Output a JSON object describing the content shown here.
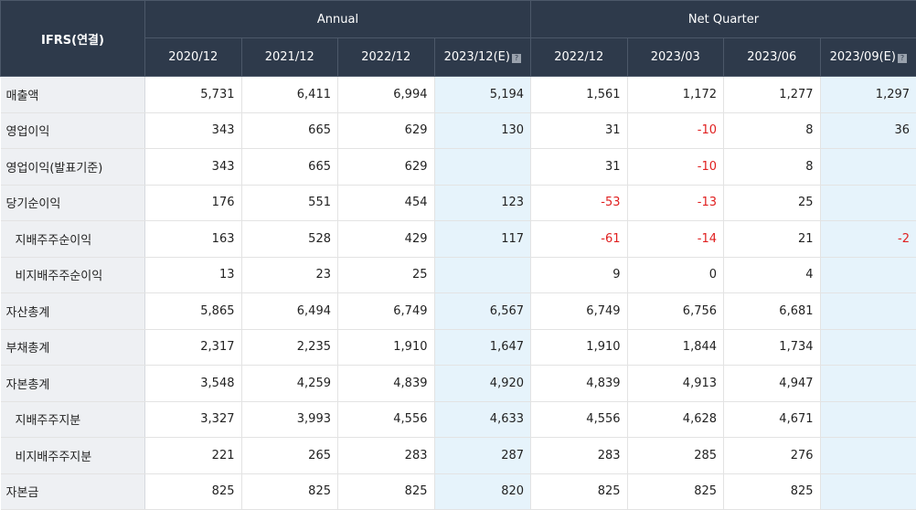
{
  "header": {
    "corner": "IFRS(연결)",
    "group_annual": "Annual",
    "group_quarter": "Net Quarter",
    "estimate_icon": "question-box-icon",
    "columns": [
      "2020/12",
      "2021/12",
      "2022/12",
      "2023/12(E)",
      "2022/12",
      "2023/03",
      "2023/06",
      "2023/09(E)"
    ],
    "estimate_columns": [
      3,
      7
    ]
  },
  "colors": {
    "header_bg": "#2e3a4b",
    "label_bg": "#eef0f3",
    "estimate_bg": "#e6f3fb",
    "negative": "#e02020"
  },
  "rows": [
    {
      "label": "매출액",
      "indent": false,
      "values": [
        "5,731",
        "6,411",
        "6,994",
        "5,194",
        "1,561",
        "1,172",
        "1,277",
        "1,297"
      ]
    },
    {
      "label": "영업이익",
      "indent": false,
      "values": [
        "343",
        "665",
        "629",
        "130",
        "31",
        "-10",
        "8",
        "36"
      ]
    },
    {
      "label": "영업이익(발표기준)",
      "indent": false,
      "values": [
        "343",
        "665",
        "629",
        "",
        "31",
        "-10",
        "8",
        ""
      ]
    },
    {
      "label": "당기순이익",
      "indent": false,
      "values": [
        "176",
        "551",
        "454",
        "123",
        "-53",
        "-13",
        "25",
        ""
      ]
    },
    {
      "label": "지배주주순이익",
      "indent": true,
      "values": [
        "163",
        "528",
        "429",
        "117",
        "-61",
        "-14",
        "21",
        "-2"
      ]
    },
    {
      "label": "비지배주주순이익",
      "indent": true,
      "values": [
        "13",
        "23",
        "25",
        "",
        "9",
        "0",
        "4",
        ""
      ]
    },
    {
      "label": "자산총계",
      "indent": false,
      "values": [
        "5,865",
        "6,494",
        "6,749",
        "6,567",
        "6,749",
        "6,756",
        "6,681",
        ""
      ]
    },
    {
      "label": "부채총계",
      "indent": false,
      "values": [
        "2,317",
        "2,235",
        "1,910",
        "1,647",
        "1,910",
        "1,844",
        "1,734",
        ""
      ]
    },
    {
      "label": "자본총계",
      "indent": false,
      "values": [
        "3,548",
        "4,259",
        "4,839",
        "4,920",
        "4,839",
        "4,913",
        "4,947",
        ""
      ]
    },
    {
      "label": "지배주주지분",
      "indent": true,
      "values": [
        "3,327",
        "3,993",
        "4,556",
        "4,633",
        "4,556",
        "4,628",
        "4,671",
        ""
      ]
    },
    {
      "label": "비지배주주지분",
      "indent": true,
      "values": [
        "221",
        "265",
        "283",
        "287",
        "283",
        "285",
        "276",
        ""
      ]
    },
    {
      "label": "자본금",
      "indent": false,
      "values": [
        "825",
        "825",
        "825",
        "820",
        "825",
        "825",
        "825",
        ""
      ]
    }
  ]
}
